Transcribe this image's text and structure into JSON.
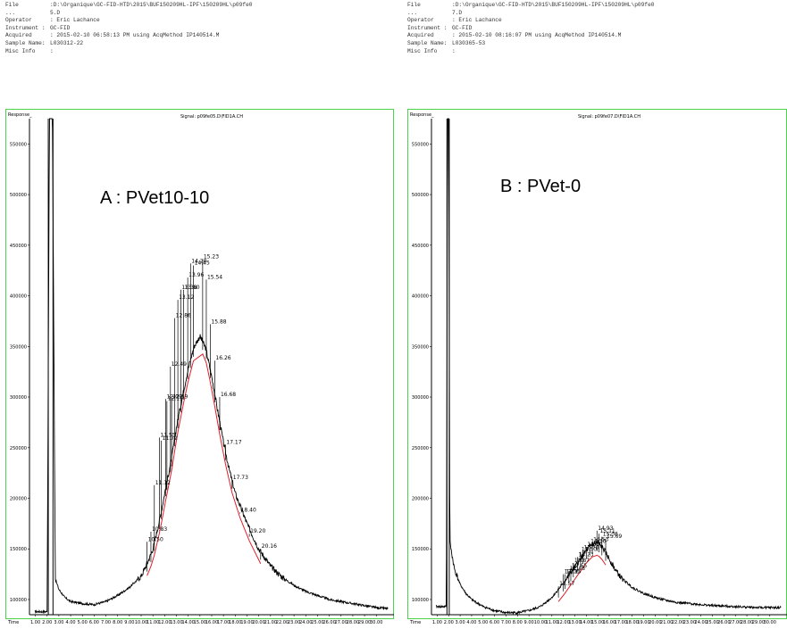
{
  "panels": [
    {
      "header": {
        "file": {
          "key": "File",
          "value": ":D:\\Organique\\GC-FID-HTD\\2015\\BUF150209HL-IPF\\150209HL\\p09fe0"
        },
        "dots": {
          "key": "...",
          "value": "5.D"
        },
        "operator": {
          "key": "Operator",
          "value": ": Eric Lachance"
        },
        "instrument": {
          "key": "Instrument :",
          "value": "GC-FID"
        },
        "acquired": {
          "key": "Acquired",
          "value": ": 2015-02-10 06:58:13 PM using AcqMethod IP140514.M"
        },
        "sample": {
          "key": "Sample Name:",
          "value": "L030312-22"
        },
        "misc": {
          "key": "Misc Info",
          "value": ":"
        }
      }
    },
    {
      "header": {
        "file": {
          "key": "File",
          "value": ":D:\\Organique\\GC-FID-HTD\\2015\\BUF150209HL-IPF\\150209HL\\p09fe0"
        },
        "dots": {
          "key": "...",
          "value": "7.D"
        },
        "operator": {
          "key": "Operator",
          "value": ": Eric Lachance"
        },
        "instrument": {
          "key": "Instrument :",
          "value": "GC-FID"
        },
        "acquired": {
          "key": "Acquired",
          "value": ": 2015-02-10 08:16:07 PM using AcqMethod IP140514.M"
        },
        "sample": {
          "key": "Sample Name:",
          "value": "L030365-53"
        },
        "misc": {
          "key": "Misc Info",
          "value": ":"
        }
      }
    }
  ],
  "chart_data": [
    {
      "type": "line",
      "label": "A : PVet10-10",
      "signal": "Signal: p09fe05.D\\FID1A.CH",
      "ylabel": "Response_",
      "xlabel": "Time",
      "xlim": [
        0.5,
        31.5
      ],
      "ylim": [
        85000,
        575000
      ],
      "yticks": [
        100000,
        150000,
        200000,
        250000,
        300000,
        350000,
        400000,
        450000,
        500000,
        550000
      ],
      "xticks": [
        1,
        2,
        3,
        4,
        5,
        6,
        7,
        8,
        9,
        10,
        11,
        12,
        13,
        14,
        15,
        16,
        17,
        18,
        19,
        20,
        21,
        22,
        23,
        24,
        25,
        26,
        27,
        28,
        29,
        30
      ],
      "xtick_labels": [
        "1.00",
        "2.00",
        "3.00",
        "4.00",
        "5.00",
        "6.00",
        "7.00",
        "8.00",
        "9.00",
        "10.00",
        "11.00",
        "12.00",
        "13.00",
        "14.00",
        "15.00",
        "16.00",
        "17.00",
        "18.00",
        "19.00",
        "20.00",
        "21.00",
        "22.00",
        "23.00",
        "24.00",
        "25.00",
        "26.00",
        "27.00",
        "28.00",
        "29.00",
        "30.00"
      ],
      "solvent_peak_x": [
        2.1,
        2.5
      ],
      "envelope": {
        "x": [
          0.95,
          1.15,
          1.6,
          2.0,
          2.2,
          2.45,
          2.7,
          3.0,
          3.5,
          4.0,
          5.0,
          6.0,
          7.0,
          8.0,
          9.0,
          10.0,
          10.6,
          11.0,
          11.6,
          12.0,
          12.6,
          13.0,
          13.5,
          14.0,
          14.5,
          15.0,
          15.5,
          16.0,
          16.5,
          17.0,
          17.5,
          18.0,
          19.0,
          20.0,
          21.0,
          22.0,
          23.0,
          24.0,
          25.0,
          26.0,
          27.0,
          28.0,
          29.0,
          30.0,
          31.0
        ],
        "y": [
          88000,
          88000,
          88000,
          88000,
          575000,
          575000,
          120000,
          110000,
          102000,
          98000,
          96000,
          95000,
          98000,
          104000,
          112000,
          123000,
          138000,
          150000,
          180000,
          205000,
          240000,
          270000,
          300000,
          328000,
          350000,
          360000,
          348000,
          320000,
          287000,
          255000,
          228000,
          205000,
          175000,
          150000,
          133000,
          122000,
          114000,
          108000,
          104000,
          100000,
          98000,
          96000,
          94000,
          92000,
          91000
        ]
      },
      "peaks": [
        {
          "label": "10.50",
          "x": 10.5,
          "y": 157000
        },
        {
          "label": "10.83",
          "x": 10.83,
          "y": 167000
        },
        {
          "label": "11.12",
          "x": 11.12,
          "y": 213000
        },
        {
          "label": "11.55",
          "x": 11.55,
          "y": 260000
        },
        {
          "label": "11.72",
          "x": 11.72,
          "y": 257000
        },
        {
          "label": "12.09",
          "x": 12.09,
          "y": 298000
        },
        {
          "label": "12.19",
          "x": 12.19,
          "y": 296000
        },
        {
          "label": "12.49",
          "x": 12.49,
          "y": 330000
        },
        {
          "label": "12.59",
          "x": 12.59,
          "y": 298000
        },
        {
          "label": "12.86",
          "x": 12.86,
          "y": 378000
        },
        {
          "label": "13.12",
          "x": 13.12,
          "y": 396000
        },
        {
          "label": "13.38",
          "x": 13.38,
          "y": 406000
        },
        {
          "label": "13.60",
          "x": 13.6,
          "y": 406000
        },
        {
          "label": "13.96",
          "x": 13.96,
          "y": 418000
        },
        {
          "label": "14.20",
          "x": 14.2,
          "y": 432000
        },
        {
          "label": "14.45",
          "x": 14.45,
          "y": 430000
        },
        {
          "label": "15.23",
          "x": 15.23,
          "y": 436000
        },
        {
          "label": "15.54",
          "x": 15.54,
          "y": 416000
        },
        {
          "label": "15.88",
          "x": 15.88,
          "y": 372000
        },
        {
          "label": "16.26",
          "x": 16.26,
          "y": 336000
        },
        {
          "label": "16.68",
          "x": 16.68,
          "y": 300000
        },
        {
          "label": "17.17",
          "x": 17.17,
          "y": 253000
        },
        {
          "label": "17.73",
          "x": 17.73,
          "y": 218000
        },
        {
          "label": "18.40",
          "x": 18.4,
          "y": 186000
        },
        {
          "label": "19.20",
          "x": 19.2,
          "y": 165000
        },
        {
          "label": "20.16",
          "x": 20.16,
          "y": 150000
        }
      ]
    },
    {
      "type": "line",
      "label": "B : PVet-0",
      "signal": "Signal: p09fe07.D\\FID1A.CH",
      "ylabel": "Response_",
      "xlabel": "Time",
      "xlim": [
        0.5,
        31.5
      ],
      "ylim": [
        85000,
        575000
      ],
      "yticks": [
        100000,
        150000,
        200000,
        250000,
        300000,
        350000,
        400000,
        450000,
        500000,
        550000
      ],
      "xticks": [
        1,
        2,
        3,
        4,
        5,
        6,
        7,
        8,
        9,
        10,
        11,
        12,
        13,
        14,
        15,
        16,
        17,
        18,
        19,
        20,
        21,
        22,
        23,
        24,
        25,
        26,
        27,
        28,
        29,
        30
      ],
      "xtick_labels": [
        "1.00",
        "2.00",
        "3.00",
        "4.00",
        "5.00",
        "6.00",
        "7.00",
        "8.00",
        "9.00",
        "10.00",
        "11.00",
        "12.00",
        "13.00",
        "14.00",
        "15.00",
        "16.00",
        "17.00",
        "18.00",
        "19.00",
        "20.00",
        "21.00",
        "22.00",
        "23.00",
        "24.00",
        "25.00",
        "26.00",
        "27.00",
        "28.00",
        "29.00",
        "30.00"
      ],
      "solvent_peak_x": [
        1.85,
        2.05
      ],
      "envelope": {
        "x": [
          0.9,
          1.2,
          1.5,
          1.8,
          1.9,
          2.0,
          2.1,
          2.2,
          2.5,
          3.0,
          3.5,
          4.0,
          5.0,
          6.0,
          7.0,
          8.0,
          9.0,
          10.0,
          11.0,
          12.0,
          13.0,
          14.0,
          14.5,
          15.0,
          15.5,
          16.0,
          16.5,
          17.0,
          18.0,
          19.0,
          20.0,
          21.0,
          22.0,
          23.0,
          24.0,
          25.0,
          26.0,
          27.0,
          28.0,
          29.0,
          30.0,
          31.0
        ],
        "y": [
          93000,
          93000,
          93000,
          93000,
          575000,
          575000,
          160000,
          150000,
          130000,
          115000,
          106000,
          100000,
          93000,
          89000,
          87000,
          87000,
          89000,
          93000,
          102000,
          116000,
          132000,
          148000,
          154000,
          156000,
          150000,
          140000,
          130000,
          122000,
          112000,
          106000,
          102000,
          99000,
          97000,
          96000,
          95000,
          94000,
          93500,
          93000,
          92500,
          92000,
          92000,
          92000
        ]
      },
      "peaks": [
        {
          "label": "11.57",
          "x": 11.57,
          "y": 113000
        },
        {
          "label": "12.00",
          "x": 12.0,
          "y": 125000
        },
        {
          "label": "12.15",
          "x": 12.15,
          "y": 125000
        },
        {
          "label": "12.48",
          "x": 12.48,
          "y": 128000
        },
        {
          "label": "12.65",
          "x": 12.65,
          "y": 131000
        },
        {
          "label": "12.87",
          "x": 12.87,
          "y": 136000
        },
        {
          "label": "13.23",
          "x": 13.23,
          "y": 142000
        },
        {
          "label": "13.50",
          "x": 13.5,
          "y": 147000
        },
        {
          "label": "13.70",
          "x": 13.7,
          "y": 149000
        },
        {
          "label": "14.00",
          "x": 14.0,
          "y": 152000
        },
        {
          "label": "14.30",
          "x": 14.3,
          "y": 155000
        },
        {
          "label": "14.53",
          "x": 14.53,
          "y": 157000
        },
        {
          "label": "14.93",
          "x": 14.93,
          "y": 168000
        },
        {
          "label": "15.11",
          "x": 15.11,
          "y": 165000
        },
        {
          "label": "15.36",
          "x": 15.36,
          "y": 162000
        },
        {
          "label": "15.69",
          "x": 15.69,
          "y": 160000
        }
      ]
    }
  ],
  "colors": {
    "frame": "#4cd44c",
    "trace": "#000000",
    "baseline": "#e0202a"
  }
}
